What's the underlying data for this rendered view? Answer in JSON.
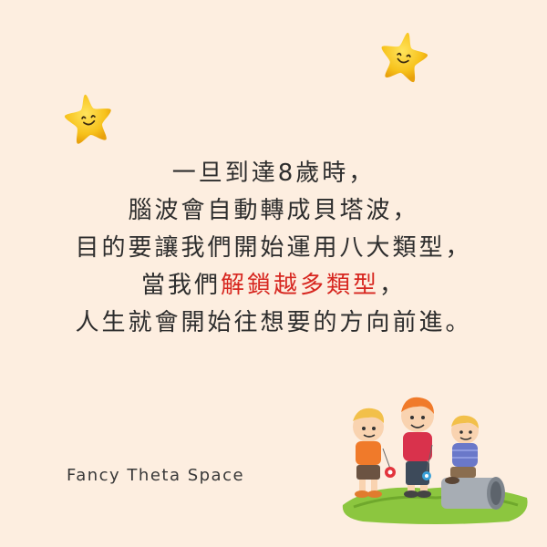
{
  "message": {
    "line1": "一旦到達8歲時，",
    "line2": "腦波會自動轉成貝塔波，",
    "line3": "目的要讓我們開始運用八大類型，",
    "line4": {
      "before": "當我們",
      "highlight": "解鎖越多類型",
      "after": "，"
    },
    "line5": "人生就會開始往想要的方向前進。"
  },
  "brand": "Fancy Theta Space",
  "colors": {
    "background": "#fdeee0",
    "text": "#2d2d2d",
    "highlight": "#d7261f",
    "star": "#f7c21c"
  },
  "icons": [
    "smiling-star-icon",
    "children-illustration"
  ]
}
